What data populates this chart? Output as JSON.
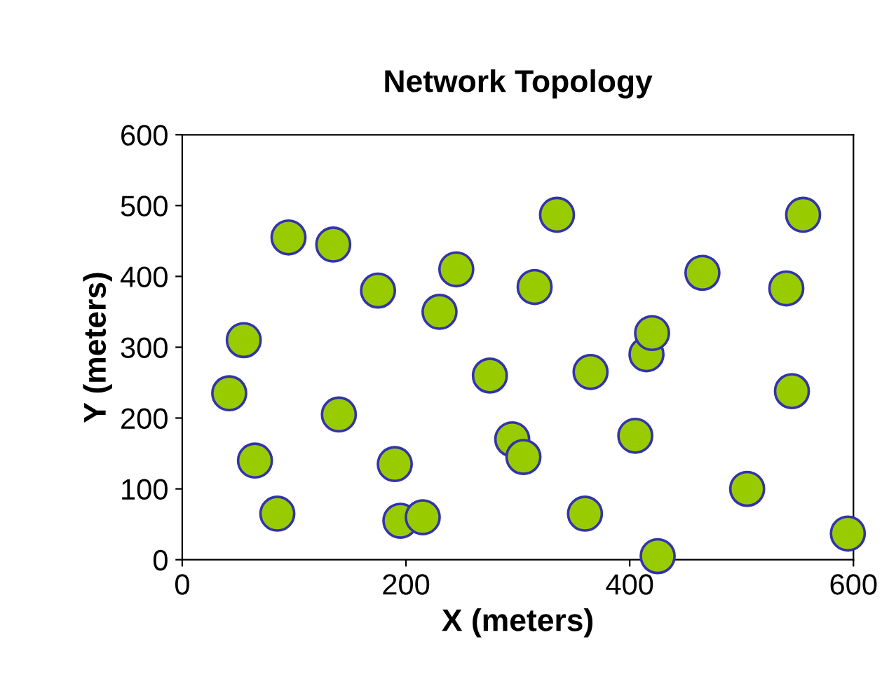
{
  "chart_data": {
    "type": "scatter",
    "title": "Network Topology",
    "xlabel": "X (meters)",
    "ylabel": "Y (meters)",
    "x": [
      42,
      55,
      65,
      85,
      95,
      135,
      140,
      175,
      190,
      195,
      215,
      230,
      245,
      275,
      295,
      305,
      315,
      335,
      360,
      365,
      405,
      415,
      420,
      425,
      465,
      505,
      540,
      545,
      555,
      595
    ],
    "series": [
      {
        "color": "#99cc00",
        "values": [
          235,
          310,
          140,
          65,
          455,
          445,
          205,
          380,
          135,
          55,
          60,
          350,
          410,
          260,
          170,
          145,
          385,
          487,
          65,
          265,
          175,
          290,
          320,
          5,
          405,
          100,
          383,
          238,
          487,
          37
        ]
      }
    ],
    "xlim": [
      0,
      600
    ],
    "ylim": [
      0,
      600
    ],
    "xticks": [
      0,
      200,
      400,
      600
    ],
    "yticks": [
      0,
      100,
      200,
      300,
      400,
      500,
      600
    ],
    "grid": false,
    "marker": "circle",
    "legend": false
  }
}
